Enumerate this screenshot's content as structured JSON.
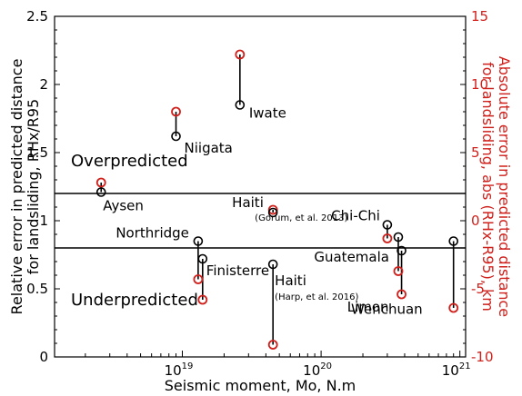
{
  "chart_data": {
    "type": "scatter",
    "xlabel": "Seismic moment, Mo, N.m",
    "ylabel": "Relative error in predicted distance for landsliding, RHx/R95",
    "ylabel_lines": [
      "Relative error in predicted distance",
      "for landsliding, RHx/R95"
    ],
    "y2label": "Absolute error in predicted distance for landsliding, abs (RHx-R95), km",
    "y2label_lines": [
      "Absolute error in predicted distance",
      "for landsliding, abs (RHx-R95), km"
    ],
    "x_scale": "log",
    "xlim": [
      1.2e+18,
      1.1e+21
    ],
    "ylim": [
      0,
      2.5
    ],
    "y2lim": [
      -10,
      15
    ],
    "x_ticks": [
      {
        "value": 1e+19,
        "base": "10",
        "exp": "19"
      },
      {
        "value": 1e+20,
        "base": "10",
        "exp": "20"
      },
      {
        "value": 1e+21,
        "base": "10",
        "exp": "21"
      }
    ],
    "y_ticks": [
      "0",
      "0.5",
      "1",
      "1.5",
      "2",
      "2.5"
    ],
    "y_tick_values": [
      0,
      0.5,
      1,
      1.5,
      2,
      2.5
    ],
    "y2_ticks": [
      "-10",
      "-5",
      "0",
      "5",
      "10",
      "15"
    ],
    "y2_tick_values": [
      -10,
      -5,
      0,
      5,
      10,
      15
    ],
    "reference_lines": [
      1.2,
      0.8
    ],
    "regions": [
      "Overpredicted",
      "Underpredicted"
    ],
    "colors": {
      "relative": "#000000",
      "absolute": "#d0201b"
    },
    "grid": false,
    "points": [
      {
        "label": "Aysen",
        "mo": 2.6e+18,
        "relative": 1.21,
        "absolute": 2.8
      },
      {
        "label": "Niigata",
        "mo": 9e+18,
        "relative": 1.62,
        "absolute": 8.0
      },
      {
        "label": "Iwate",
        "mo": 2.6e+19,
        "relative": 1.85,
        "absolute": 12.2
      },
      {
        "label": "Northridge",
        "mo": 1.3e+19,
        "relative": 0.85,
        "absolute": -4.3
      },
      {
        "label": "Finisterre",
        "mo": 1.4e+19,
        "relative": 0.72,
        "absolute": -5.8
      },
      {
        "label": "Haiti",
        "note": "(Gorum, et al. 2013)",
        "mo": 4.5e+19,
        "relative": 1.06,
        "absolute": 0.8
      },
      {
        "label": "Haiti",
        "note": "(Harp, et al. 2016)",
        "mo": 4.5e+19,
        "relative": 0.68,
        "absolute": -9.1
      },
      {
        "label": "Chi-Chi",
        "mo": 3e+20,
        "relative": 0.97,
        "absolute": -1.3
      },
      {
        "label": "Guatemala",
        "mo": 3.6e+20,
        "relative": 0.88,
        "absolute": -3.7
      },
      {
        "label": "Limon",
        "mo": 3.8e+20,
        "relative": 0.78,
        "absolute": -5.4
      },
      {
        "label": "Wenchuan",
        "mo": 9e+20,
        "relative": 0.85,
        "absolute": -6.4
      }
    ]
  }
}
